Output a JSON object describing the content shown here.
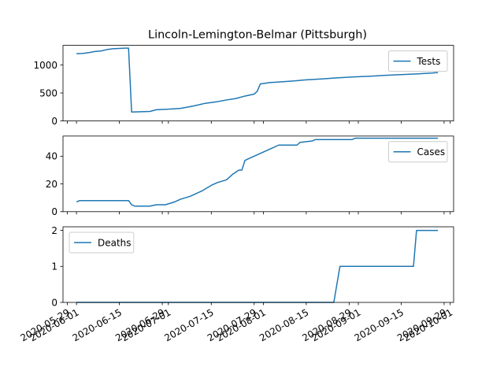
{
  "chart_data": [
    {
      "type": "line",
      "title": "Lincoln-Lemington-Belmar (Pittsburgh)",
      "legend": "top-right",
      "ylim": [
        0,
        1350
      ],
      "yticks": [
        0,
        500,
        1000
      ],
      "show_xtick_labels": false,
      "series": [
        {
          "name": "Tests",
          "color": "#1f77b4",
          "points": [
            [
              "2020-06-01",
              1200
            ],
            [
              "2020-06-03",
              1205
            ],
            [
              "2020-06-05",
              1220
            ],
            [
              "2020-06-07",
              1240
            ],
            [
              "2020-06-09",
              1250
            ],
            [
              "2020-06-11",
              1275
            ],
            [
              "2020-06-13",
              1290
            ],
            [
              "2020-06-15",
              1295
            ],
            [
              "2020-06-17",
              1300
            ],
            [
              "2020-06-18",
              1300
            ],
            [
              "2020-06-19",
              160
            ],
            [
              "2020-06-22",
              165
            ],
            [
              "2020-06-25",
              170
            ],
            [
              "2020-06-27",
              200
            ],
            [
              "2020-06-29",
              205
            ],
            [
              "2020-07-01",
              210
            ],
            [
              "2020-07-05",
              225
            ],
            [
              "2020-07-09",
              265
            ],
            [
              "2020-07-13",
              315
            ],
            [
              "2020-07-17",
              345
            ],
            [
              "2020-07-20",
              375
            ],
            [
              "2020-07-23",
              400
            ],
            [
              "2020-07-26",
              445
            ],
            [
              "2020-07-29",
              480
            ],
            [
              "2020-07-30",
              530
            ],
            [
              "2020-07-31",
              660
            ],
            [
              "2020-08-03",
              685
            ],
            [
              "2020-08-07",
              700
            ],
            [
              "2020-08-11",
              715
            ],
            [
              "2020-08-15",
              735
            ],
            [
              "2020-08-20",
              750
            ],
            [
              "2020-08-25",
              770
            ],
            [
              "2020-08-30",
              785
            ],
            [
              "2020-09-05",
              800
            ],
            [
              "2020-09-10",
              815
            ],
            [
              "2020-09-15",
              828
            ],
            [
              "2020-09-20",
              840
            ],
            [
              "2020-09-25",
              855
            ],
            [
              "2020-09-27",
              865
            ]
          ]
        }
      ]
    },
    {
      "type": "line",
      "legend": "top-right",
      "ylim": [
        0,
        54.5
      ],
      "yticks": [
        0,
        20,
        40
      ],
      "show_xtick_labels": false,
      "series": [
        {
          "name": "Cases",
          "color": "#1f77b4",
          "points": [
            [
              "2020-06-01",
              7
            ],
            [
              "2020-06-02",
              8
            ],
            [
              "2020-06-18",
              8
            ],
            [
              "2020-06-19",
              5
            ],
            [
              "2020-06-20",
              4
            ],
            [
              "2020-06-25",
              4
            ],
            [
              "2020-06-27",
              5
            ],
            [
              "2020-06-30",
              5
            ],
            [
              "2020-07-03",
              7
            ],
            [
              "2020-07-05",
              9
            ],
            [
              "2020-07-08",
              11
            ],
            [
              "2020-07-10",
              13
            ],
            [
              "2020-07-12",
              15
            ],
            [
              "2020-07-15",
              19
            ],
            [
              "2020-07-17",
              21
            ],
            [
              "2020-07-20",
              23
            ],
            [
              "2020-07-22",
              27
            ],
            [
              "2020-07-24",
              30
            ],
            [
              "2020-07-25",
              30
            ],
            [
              "2020-07-26",
              37
            ],
            [
              "2020-07-28",
              39
            ],
            [
              "2020-07-30",
              41
            ],
            [
              "2020-08-01",
              43
            ],
            [
              "2020-08-04",
              46
            ],
            [
              "2020-08-06",
              48
            ],
            [
              "2020-08-12",
              48
            ],
            [
              "2020-08-13",
              50
            ],
            [
              "2020-08-17",
              51
            ],
            [
              "2020-08-18",
              52
            ],
            [
              "2020-08-30",
              52
            ],
            [
              "2020-08-31",
              53
            ],
            [
              "2020-09-27",
              53
            ]
          ]
        }
      ]
    },
    {
      "type": "line",
      "legend": "top-left",
      "ylim": [
        0,
        2.1
      ],
      "yticks": [
        0,
        1,
        2
      ],
      "show_xtick_labels": true,
      "xticks": [
        "2020-05-29",
        "2020-06-01",
        "2020-06-15",
        "2020-06-29",
        "2020-07-01",
        "2020-07-15",
        "2020-07-29",
        "2020-08-01",
        "2020-08-15",
        "2020-08-29",
        "2020-09-01",
        "2020-09-15",
        "2020-09-29",
        "2020-10-01"
      ],
      "series": [
        {
          "name": "Deaths",
          "color": "#1f77b4",
          "points": [
            [
              "2020-06-01",
              0
            ],
            [
              "2020-08-24",
              0
            ],
            [
              "2020-08-26",
              1
            ],
            [
              "2020-09-19",
              1
            ],
            [
              "2020-09-20",
              2
            ],
            [
              "2020-09-27",
              2
            ]
          ]
        }
      ]
    }
  ]
}
